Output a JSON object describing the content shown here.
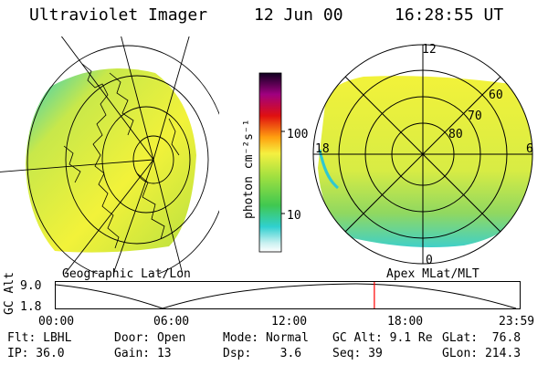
{
  "header": {
    "title": "Ultraviolet Imager",
    "date": "12 Jun 00",
    "time": "16:28:55 UT"
  },
  "left_panel": {
    "caption": "Geographic Lat/Lon"
  },
  "right_panel": {
    "caption": "Apex MLat/MLT",
    "mlt_labels": {
      "top": "12",
      "right": "6",
      "bottom": "0",
      "left": "18"
    },
    "lat_labels": [
      "60",
      "70",
      "80"
    ]
  },
  "colorbar": {
    "unit_label": "photon cm⁻²s⁻¹",
    "tick_100": "100",
    "tick_10": "10"
  },
  "altitude_plot": {
    "ylabel": "GC Alt",
    "y_ticks": [
      "9.0",
      "1.8"
    ],
    "x_ticks": [
      "00:00",
      "06:00",
      "12:00",
      "18:00",
      "23:59"
    ],
    "marker_time": "16:28:55",
    "marker_color": "#ff0000"
  },
  "info_rows": [
    [
      {
        "text": "Flt: LBHL"
      },
      {
        "text": "Door: Open"
      },
      {
        "text": "Mode: Normal"
      },
      {
        "text": "GC Alt: 9.1 Re"
      },
      {
        "text": "GLat:  76.8"
      }
    ],
    [
      {
        "text": "IP: 36.0"
      },
      {
        "text": "Gain: 13"
      },
      {
        "text": "Dsp:    3.6"
      },
      {
        "text": "Seq: 39"
      },
      {
        "text": "GLon: 214.3"
      }
    ]
  ]
}
